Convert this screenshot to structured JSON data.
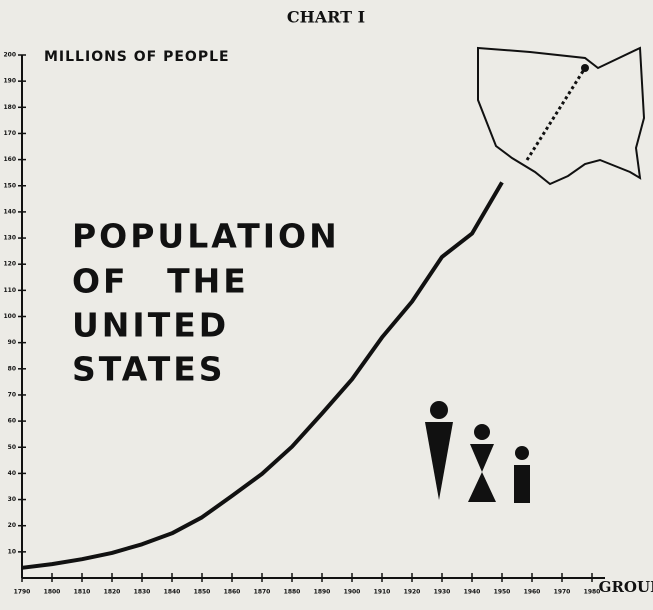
{
  "chart_data": {
    "type": "line",
    "title": "CHART I",
    "y_label": "MILLIONS OF PEOPLE",
    "annotation": [
      "POPULATION",
      "OF THE",
      "UNITED",
      "STATES"
    ],
    "logo": "GROUP",
    "x": [
      1790,
      1800,
      1810,
      1820,
      1830,
      1840,
      1850,
      1860,
      1870,
      1880,
      1890,
      1900,
      1910,
      1920,
      1930,
      1940,
      1950
    ],
    "series": [
      {
        "color": "#111111",
        "values": [
          3.9,
          5.3,
          7.2,
          9.6,
          12.9,
          17.1,
          23.2,
          31.4,
          39.8,
          50.2,
          62.9,
          76.0,
          92.0,
          105.7,
          122.8,
          131.7,
          151.3
        ]
      }
    ],
    "xlim": [
      1790,
      1980
    ],
    "xticks": [
      1790,
      1800,
      1810,
      1820,
      1830,
      1840,
      1850,
      1860,
      1870,
      1880,
      1890,
      1900,
      1910,
      1920,
      1930,
      1940,
      1950,
      1960,
      1970,
      1980
    ],
    "ylim": [
      0,
      200
    ],
    "yticks": [
      10,
      20,
      30,
      40,
      50,
      60,
      70,
      80,
      90,
      100,
      110,
      120,
      130,
      140,
      150,
      160,
      170,
      180,
      190,
      200
    ]
  }
}
